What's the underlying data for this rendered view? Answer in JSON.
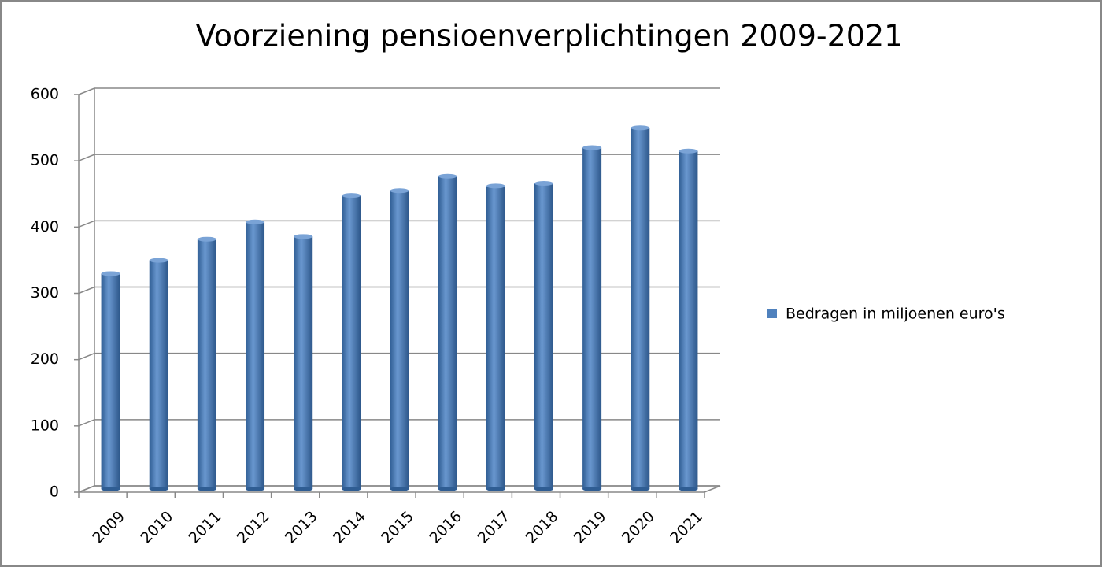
{
  "chart_data": {
    "type": "bar",
    "title": "Voorziening pensioenverplichtingen 2009-2021",
    "categories": [
      "2009",
      "2010",
      "2011",
      "2012",
      "2013",
      "2014",
      "2015",
      "2016",
      "2017",
      "2018",
      "2019",
      "2020",
      "2021"
    ],
    "series": [
      {
        "name": "Bedragen in miljoenen euro's",
        "color": "#4f81bd",
        "values": [
          325,
          345,
          377,
          403,
          381,
          443,
          450,
          472,
          457,
          461,
          515,
          545,
          510
        ]
      }
    ],
    "ylim": [
      0,
      600
    ],
    "yticks": [
      0,
      100,
      200,
      300,
      400,
      500,
      600
    ],
    "grid": true,
    "legend": "right"
  }
}
